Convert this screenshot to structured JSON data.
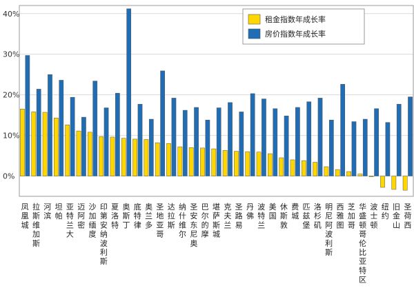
{
  "chart_data": {
    "type": "bar",
    "title": "",
    "xlabel": "",
    "ylabel": "",
    "ylim": [
      -0.05,
      0.42
    ],
    "yticks": [
      0,
      0.1,
      0.2,
      0.3,
      0.4
    ],
    "ytick_labels": [
      "0%",
      "10%",
      "20%",
      "30%",
      "40%"
    ],
    "grid": true,
    "legend_position": "top-right",
    "categories": [
      "凤凰城",
      "拉斯维加斯",
      "河滨",
      "坦帕",
      "亚特兰大",
      "迈阿密",
      "沙加缅度",
      "印第安纳波利斯",
      "夏洛特",
      "奥斯丁",
      "底特律",
      "奥兰多",
      "圣地亚哥",
      "达拉斯",
      "纳什维尔",
      "圣安东尼奥",
      "巴尔的摩",
      "堪萨斯城",
      "克夫兰",
      "圣路易",
      "丹佛",
      "波特兰",
      "美国",
      "休斯敦",
      "费城",
      "匹兹堡",
      "洛杉矶",
      "明尼阿波利斯",
      "西雅图",
      "芝加哥",
      "华盛顿哥伦比亚特区",
      "波士顿",
      "纽约",
      "旧金山",
      "圣荷西"
    ],
    "series": [
      {
        "name": "租金指数年成长率",
        "color": "#FFD700",
        "values": [
          0.165,
          0.158,
          0.157,
          0.143,
          0.126,
          0.111,
          0.108,
          0.097,
          0.096,
          0.093,
          0.091,
          0.09,
          0.082,
          0.08,
          0.072,
          0.07,
          0.069,
          0.067,
          0.063,
          0.061,
          0.06,
          0.059,
          0.055,
          0.045,
          0.04,
          0.038,
          0.034,
          0.023,
          0.016,
          0.011,
          0.005,
          -0.002,
          -0.028,
          -0.033,
          -0.035
        ]
      },
      {
        "name": "房价指数年成长率",
        "color": "#1F6DB5",
        "values": [
          0.297,
          0.214,
          0.25,
          0.236,
          0.194,
          0.145,
          0.234,
          0.168,
          0.204,
          0.412,
          0.177,
          0.14,
          0.259,
          0.192,
          0.162,
          0.169,
          0.138,
          0.168,
          0.181,
          0.158,
          0.203,
          0.19,
          0.166,
          0.148,
          0.169,
          0.183,
          0.192,
          0.138,
          0.226,
          0.134,
          0.14,
          0.166,
          0.132,
          0.177,
          0.195
        ]
      }
    ]
  }
}
